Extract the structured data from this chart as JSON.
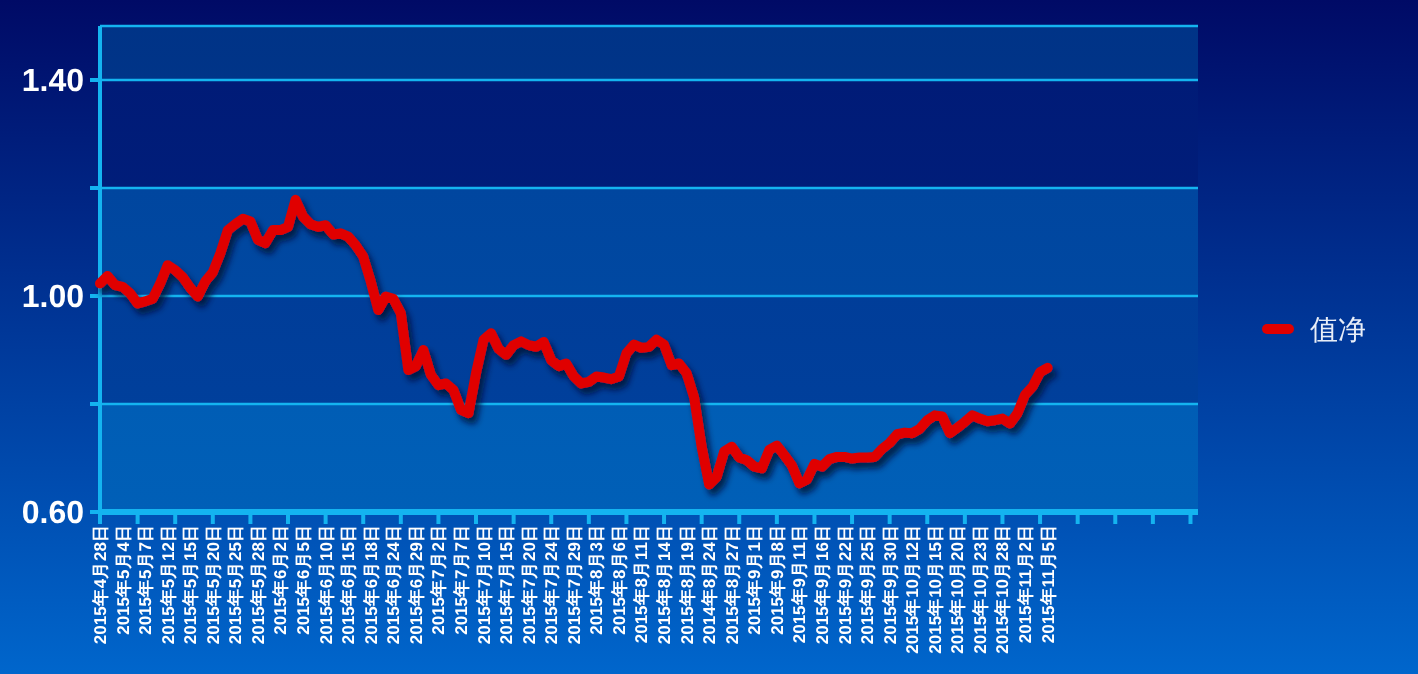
{
  "chart_data": {
    "type": "line",
    "categories": [
      "2015年4月28日",
      null,
      null,
      "2015年5月4日",
      null,
      null,
      "2015年5月7日",
      null,
      null,
      "2015年5月12日",
      null,
      null,
      "2015年5月15日",
      null,
      null,
      "2015年5月20日",
      null,
      null,
      "2015年5月25日",
      null,
      null,
      "2015年5月28日",
      null,
      null,
      "2015年6月2日",
      null,
      null,
      "2015年6月5日",
      null,
      null,
      "2015年6月10日",
      null,
      null,
      "2015年6月15日",
      null,
      null,
      "2015年6月18日",
      null,
      null,
      "2015年6月24日",
      null,
      null,
      "2015年6月29日",
      null,
      null,
      "2015年7月2日",
      null,
      null,
      "2015年7月7日",
      null,
      null,
      "2015年7月10日",
      null,
      null,
      "2015年7月15日",
      null,
      null,
      "2015年7月20日",
      null,
      null,
      "2015年7月24日",
      null,
      null,
      "2015年7月29日",
      null,
      null,
      "2015年8月3日",
      null,
      null,
      "2015年8月6日",
      null,
      null,
      "2015年8月11日",
      null,
      null,
      "2015年8月14日",
      null,
      null,
      "2015年8月19日",
      null,
      null,
      "2014年8月24日",
      null,
      null,
      "2015年8月27日",
      null,
      null,
      "2015年9月1日",
      null,
      null,
      "2015年9月8日",
      null,
      null,
      "2015年9月11日",
      null,
      null,
      "2015年9月16日",
      null,
      null,
      "2015年9月22日",
      null,
      null,
      "2015年9月25日",
      null,
      null,
      "2015年9月30日",
      null,
      null,
      "2015年10月12日",
      null,
      null,
      "2015年10月15日",
      null,
      null,
      "2015年10月20日",
      null,
      null,
      "2015年10月23日",
      null,
      null,
      "2015年10月28日",
      null,
      null,
      "2015年11月2日",
      null,
      null,
      "2015年11月5日",
      null,
      null,
      null,
      null,
      null,
      null,
      null,
      null,
      null,
      null,
      null,
      null,
      null,
      null,
      null,
      null,
      null,
      null,
      null,
      null
    ],
    "series": [
      {
        "name": "值净",
        "color": "#e00000",
        "values": [
          1.023,
          1.037,
          1.02,
          1.017,
          1.005,
          0.986,
          0.99,
          0.995,
          1.023,
          1.057,
          1.048,
          1.035,
          1.015,
          0.999,
          1.027,
          1.044,
          1.079,
          1.122,
          1.133,
          1.143,
          1.138,
          1.104,
          1.098,
          1.122,
          1.122,
          1.128,
          1.178,
          1.147,
          1.133,
          1.128,
          1.131,
          1.114,
          1.116,
          1.11,
          1.094,
          1.073,
          1.027,
          0.974,
          0.999,
          0.995,
          0.968,
          0.863,
          0.87,
          0.9,
          0.854,
          0.835,
          0.838,
          0.826,
          0.789,
          0.783,
          0.857,
          0.919,
          0.931,
          0.902,
          0.891,
          0.909,
          0.916,
          0.909,
          0.906,
          0.915,
          0.881,
          0.87,
          0.875,
          0.851,
          0.838,
          0.841,
          0.851,
          0.849,
          0.846,
          0.851,
          0.894,
          0.91,
          0.904,
          0.906,
          0.919,
          0.91,
          0.872,
          0.875,
          0.857,
          0.812,
          0.721,
          0.651,
          0.665,
          0.712,
          0.721,
          0.701,
          0.696,
          0.684,
          0.681,
          0.715,
          0.723,
          0.705,
          0.686,
          0.653,
          0.66,
          0.689,
          0.684,
          0.698,
          0.702,
          0.702,
          0.699,
          0.701,
          0.701,
          0.702,
          0.717,
          0.728,
          0.744,
          0.747,
          0.746,
          0.754,
          0.77,
          0.779,
          0.777,
          0.746,
          0.756,
          0.767,
          0.779,
          0.773,
          0.768,
          0.77,
          0.773,
          0.764,
          0.783,
          0.817,
          0.832,
          0.859,
          0.867,
          null,
          null,
          null,
          null,
          null,
          null,
          null,
          null,
          null,
          null,
          null,
          null,
          null,
          null,
          null,
          null,
          null,
          null,
          null,
          null
        ]
      }
    ],
    "ylim": [
      0.6,
      1.5
    ],
    "yticks": [
      {
        "value": 0.6,
        "label": "0.60"
      },
      {
        "value": 0.8,
        "label": null
      },
      {
        "value": 1.0,
        "label": "1.00"
      },
      {
        "value": 1.2,
        "label": null
      },
      {
        "value": 1.4,
        "label": "1.40"
      }
    ],
    "grid": "y",
    "legend": "right",
    "line_style": "solid"
  }
}
